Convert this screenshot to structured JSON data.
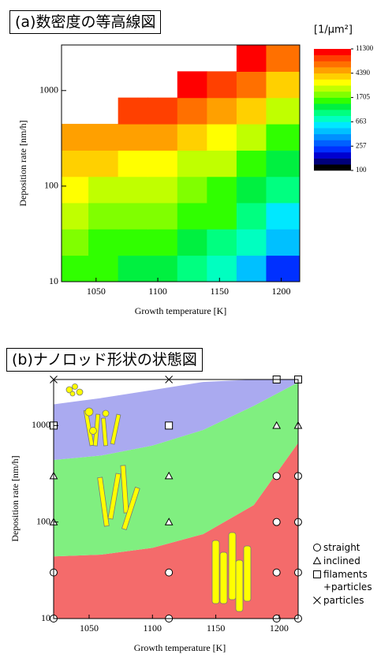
{
  "chart_data": [
    {
      "type": "contour",
      "title": "(a)数密度の等高線図",
      "xlabel": "Growth temperature [K]",
      "ylabel": "Deposition rate [nm/h]",
      "xlim": [
        1022,
        1215
      ],
      "ylim": [
        10,
        3000
      ],
      "xticks": [
        1050,
        1100,
        1150,
        1200
      ],
      "yticks": [
        10,
        100,
        1000
      ],
      "log_y": true,
      "x": [
        1032,
        1056,
        1080,
        1104,
        1128,
        1152,
        1176,
        1200
      ],
      "y": [
        13.7,
        25.8,
        48.7,
        91.6,
        172,
        325,
        612,
        1152,
        2170
      ],
      "z": [
        [
          1500,
          1400,
          1300,
          1100,
          900,
          700,
          450,
          250
        ],
        [
          1800,
          1700,
          1600,
          1450,
          1300,
          1000,
          700,
          450
        ],
        [
          2200,
          2100,
          2000,
          1800,
          1600,
          1400,
          1000,
          650
        ],
        [
          2800,
          2700,
          2500,
          2300,
          2000,
          1700,
          1300,
          900
        ],
        [
          3600,
          3500,
          3300,
          3000,
          2700,
          2200,
          1600,
          1100
        ],
        [
          5500,
          5500,
          5000,
          4500,
          4000,
          3200,
          2200,
          1600
        ],
        [
          null,
          null,
          8000,
          7500,
          6500,
          5000,
          3500,
          2500
        ],
        [
          null,
          null,
          null,
          null,
          10000,
          8500,
          6000,
          4000
        ],
        [
          null,
          null,
          null,
          null,
          null,
          null,
          9000,
          6000
        ]
      ],
      "colorbar": {
        "label": "[1/μm²]",
        "ticks": [
          100,
          257,
          663,
          1705,
          4390,
          11300
        ],
        "colors": [
          "#000000",
          "#00007a",
          "#0000d0",
          "#0030ff",
          "#0060ff",
          "#0090ff",
          "#00c0ff",
          "#00e8ff",
          "#00ffc0",
          "#00ff80",
          "#00f040",
          "#30ff00",
          "#80ff00",
          "#c0ff00",
          "#ffff00",
          "#ffd000",
          "#ffa000",
          "#ff7000",
          "#ff4000",
          "#ff0000"
        ]
      }
    },
    {
      "type": "scatter",
      "title": "(b)ナノロッド形状の状態図",
      "xlabel": "Growth temperature [K]",
      "ylabel": "Deposition rate [nm/h]",
      "xlim": [
        1022,
        1215
      ],
      "ylim": [
        10,
        3000
      ],
      "xticks": [
        1050,
        1100,
        1150,
        1200
      ],
      "yticks": [
        10,
        100,
        1000
      ],
      "log_y": true,
      "regions": [
        {
          "color": "#f46b6b",
          "x": [
            1022,
            1060,
            1100,
            1140,
            1180,
            1215
          ],
          "upper": [
            44,
            46,
            54,
            75,
            150,
            660
          ]
        },
        {
          "color": "#80ef80",
          "x": [
            1022,
            1060,
            1100,
            1140,
            1180,
            1215
          ],
          "upper": [
            440,
            490,
            620,
            900,
            1600,
            2800
          ]
        },
        {
          "color": "#aaaaf0",
          "x": [
            1022,
            1060,
            1100,
            1140,
            1180,
            1215
          ],
          "upper": [
            1660,
            1930,
            2330,
            2830,
            3000,
            3000
          ]
        }
      ],
      "series": [
        {
          "name": "straight",
          "marker": "circle",
          "x": [
            1022,
            1022,
            1113,
            1113,
            1198,
            1198,
            1198,
            1198,
            1215,
            1215,
            1215,
            1215
          ],
          "y": [
            30,
            10,
            30,
            10,
            300,
            100,
            30,
            10,
            300,
            100,
            30,
            10
          ]
        },
        {
          "name": "inclined",
          "marker": "triangle",
          "x": [
            1022,
            1022,
            1113,
            1113,
            1198,
            1215
          ],
          "y": [
            300,
            100,
            300,
            100,
            1000,
            1000
          ]
        },
        {
          "name": "filaments +particles",
          "marker": "square",
          "x": [
            1022,
            1113,
            1198,
            1215
          ],
          "y": [
            1000,
            1000,
            3000,
            3000
          ]
        },
        {
          "name": "particles",
          "marker": "cross",
          "x": [
            1022,
            1113
          ],
          "y": [
            3000,
            3000
          ]
        }
      ]
    }
  ]
}
